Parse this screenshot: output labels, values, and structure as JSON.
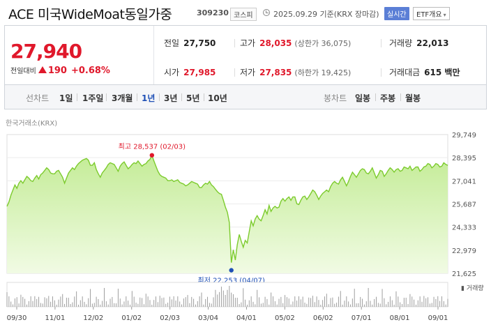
{
  "header": {
    "name": "ACE 미국WideMoat동일가중",
    "code": "309230",
    "market": "코스피",
    "date": "2025.09.29 기준(KRX 장마감)",
    "live": "실시간",
    "etf": "ETF개요"
  },
  "price": {
    "current": "27,940",
    "change_label": "전일대비",
    "change": "190",
    "change_pct": "+0.68%",
    "color_up": "#e0182b"
  },
  "stats": {
    "prev_label": "전일",
    "prev": "27,750",
    "high_label": "고가",
    "high": "28,035",
    "upper_limit": "(상한가 36,075)",
    "volume_label": "거래량",
    "volume": "22,013",
    "open_label": "시가",
    "open": "27,985",
    "low_label": "저가",
    "low": "27,835",
    "lower_limit": "(하한가 19,425)",
    "amount_label": "거래대금",
    "amount": "615 백만"
  },
  "toolbar": {
    "line_chart": "선차트",
    "periods": [
      "1일",
      "1주일",
      "3개월",
      "1년",
      "3년",
      "5년",
      "10년"
    ],
    "active_period": "1년",
    "candle_chart": "봉차트",
    "candles": [
      "일봉",
      "주봉",
      "월봉"
    ]
  },
  "chart_data": {
    "type": "area",
    "source": "한국거래소(KRX)",
    "y_ticks": [
      "29,749",
      "28,395",
      "27,041",
      "25,687",
      "24,333",
      "22,979",
      "21,625"
    ],
    "ylim": [
      21625,
      29749
    ],
    "x_ticks": [
      "09/30",
      "11/01",
      "12/02",
      "01/02",
      "02/03",
      "03/04",
      "04/01",
      "05/02",
      "06/02",
      "07/01",
      "08/01",
      "09/01"
    ],
    "high_label": "최고 28,537 (02/03)",
    "low_label": "최저 22,253 (04/07)",
    "volume_label": "거래량",
    "line_color": "#7ccb2d",
    "fill_color": "#c4ec97",
    "values": [
      25550,
      25800,
      26200,
      26500,
      26800,
      26600,
      26900,
      27050,
      26900,
      27100,
      27300,
      27200,
      27050,
      27000,
      27200,
      27350,
      27150,
      27400,
      27500,
      27650,
      27800,
      27700,
      27500,
      27450,
      27450,
      27600,
      27650,
      27450,
      27250,
      26900,
      27200,
      27500,
      27650,
      27800,
      27700,
      27900,
      28050,
      28150,
      28250,
      28300,
      28350,
      28250,
      27950,
      27950,
      28100,
      27700,
      27450,
      27250,
      27500,
      27650,
      27800,
      28000,
      28100,
      28050,
      28000,
      27800,
      27600,
      27900,
      28050,
      28150,
      27950,
      27750,
      27850,
      28000,
      28100,
      28050,
      28200,
      28050,
      27900,
      28000,
      28050,
      28200,
      28300,
      28537,
      28200,
      27900,
      27600,
      27400,
      27300,
      27250,
      27200,
      27050,
      27050,
      27100,
      27000,
      27050,
      27100,
      26950,
      26900,
      26850,
      26750,
      26800,
      26900,
      27000,
      26950,
      26900,
      26850,
      26650,
      26650,
      26800,
      26900,
      26850,
      27000,
      26800,
      26700,
      26550,
      26400,
      26300,
      26250,
      25900,
      25500,
      25200,
      24600,
      22253,
      23000,
      22400,
      23300,
      23900,
      23500,
      23150,
      23550,
      23400,
      24050,
      24700,
      24400,
      24800,
      25000,
      24800,
      24700,
      25000,
      25350,
      25100,
      25600,
      25250,
      25450,
      25550,
      25450,
      25500,
      25850,
      26000,
      25850,
      26000,
      26100,
      25900,
      26100,
      26100,
      25700,
      25650,
      25900,
      26100,
      26150,
      25950,
      26100,
      26300,
      26500,
      26400,
      26200,
      25950,
      26150,
      26300,
      26400,
      26500,
      26400,
      26700,
      26900,
      27000,
      26900,
      26850,
      27100,
      27250,
      27000,
      26750,
      27000,
      27300,
      27550,
      27400,
      27250,
      27450,
      27650,
      27750,
      27700,
      27500,
      27450,
      27600,
      27800,
      27500,
      27200,
      27400,
      27650,
      27600,
      27300,
      27450,
      27650,
      27800,
      27700,
      27550,
      27700,
      27750,
      27600,
      27650,
      27850,
      27800,
      27750,
      27900,
      27650,
      27750,
      27850,
      27850,
      27600,
      27700,
      27850,
      27900,
      28050,
      28000,
      27800,
      27900,
      28050,
      28000,
      27850,
      27900,
      28100,
      28000,
      27940
    ]
  }
}
